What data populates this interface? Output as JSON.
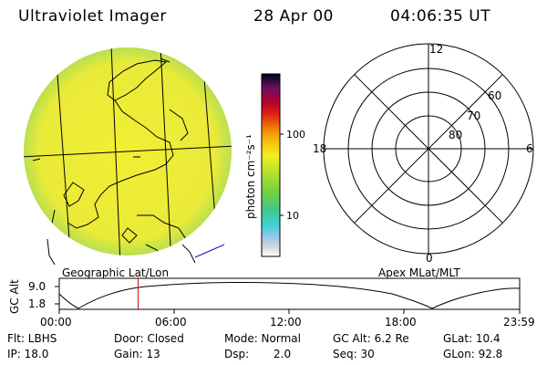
{
  "header": {
    "instrument": "Ultraviolet Imager",
    "date": "28 Apr 00",
    "time": "04:06:35 UT"
  },
  "colorbar": {
    "unit_label": "photon cm⁻²s⁻¹",
    "ticks": [
      "100",
      "10"
    ]
  },
  "polar_plot": {
    "mlt_labels": [
      "12",
      "18",
      "6",
      "0"
    ],
    "lat_labels": [
      "60",
      "70",
      "80"
    ]
  },
  "panel_labels": {
    "left": "Geographic Lat/Lon",
    "right": "Apex MLat/MLT"
  },
  "altitude_plot": {
    "ylabel": "GC Alt",
    "yticks": [
      "9.0",
      "1.8"
    ],
    "xticks": [
      "00:00",
      "06:00",
      "12:00",
      "18:00",
      "23:59"
    ],
    "current_time_hours": 4.11
  },
  "info": {
    "row1": {
      "flt": "Flt: LBHS",
      "door": "Door: Closed",
      "mode": "Mode: Normal",
      "gcalt": "GC Alt: 6.2 Re",
      "glat": "GLat: 10.4"
    },
    "row2": {
      "ip": "IP: 18.0",
      "gain": "Gain: 13",
      "dsp_label": "Dsp:",
      "dsp_value": "2.0",
      "seq": "Seq: 30",
      "glon": "GLon: 92.8"
    }
  },
  "colors": {
    "disk_fill": "#f0ec30",
    "disk_edge": "#9ad84c",
    "red_marker": "#d01010",
    "blue_line": "#1010c0"
  }
}
